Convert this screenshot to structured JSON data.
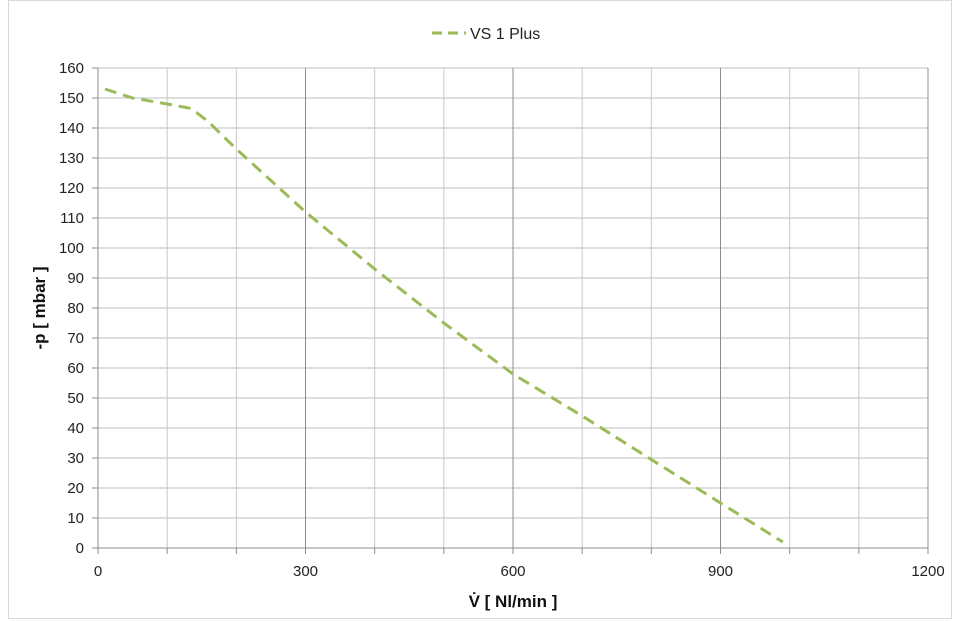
{
  "chart_data": {
    "type": "line",
    "title": "",
    "xlabel": "V̇ [ Nl/min ]",
    "ylabel": "-p [ mbar ]",
    "xlim": [
      0,
      1200
    ],
    "ylim": [
      0,
      160
    ],
    "x_major_ticks": [
      0,
      300,
      600,
      900,
      1200
    ],
    "x_minor_step": 100,
    "y_ticks": [
      0,
      10,
      20,
      30,
      40,
      50,
      60,
      70,
      80,
      90,
      100,
      110,
      120,
      130,
      140,
      150,
      160
    ],
    "grid": true,
    "legend_position": "top-center",
    "series": [
      {
        "name": "VS 1 Plus",
        "color": "#9bbb59",
        "line_style": "dashed",
        "x": [
          10,
          50,
          100,
          135,
          160,
          200,
          300,
          400,
          500,
          600,
          700,
          800,
          900,
          990
        ],
        "y": [
          153,
          150,
          148,
          146.5,
          142,
          133,
          112,
          93,
          75,
          58,
          44,
          29.5,
          15,
          2
        ]
      }
    ]
  }
}
